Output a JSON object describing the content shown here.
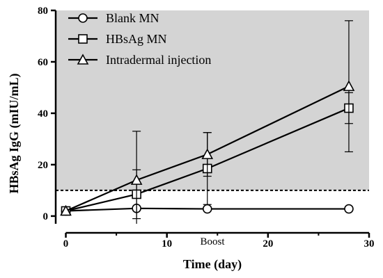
{
  "chart_data": {
    "type": "line",
    "xlabel": "Time (day)",
    "ylabel": "HBsAg IgG (mIU/mL)",
    "xlim": [
      -1,
      30
    ],
    "ylim": [
      -3,
      80
    ],
    "x_ticks": [
      0,
      10,
      20,
      30
    ],
    "y_ticks": [
      0,
      20,
      40,
      60,
      80
    ],
    "x_minor_ticks": [
      5,
      15,
      25
    ],
    "annotation": {
      "text": "Boost",
      "x": 14.5
    },
    "threshold": {
      "y": 10,
      "style": "dashed"
    },
    "shaded_region": {
      "y_from": 10,
      "y_to": 80,
      "color": "#d4d4d4"
    },
    "legend_position": "top-left",
    "grid": false,
    "series": [
      {
        "name": "Blank MN",
        "marker": "circle",
        "x": [
          0,
          7,
          14,
          28
        ],
        "y": [
          2,
          3,
          2.8,
          2.8
        ],
        "err": [
          0,
          0,
          0,
          0
        ]
      },
      {
        "name": "HBsAg MN",
        "marker": "square",
        "x": [
          0,
          7,
          14,
          28
        ],
        "y": [
          2,
          8.5,
          18.5,
          42
        ],
        "err": [
          0,
          9.5,
          14,
          6
        ]
      },
      {
        "name": "Intradermal injection",
        "marker": "triangle",
        "x": [
          0,
          7,
          14,
          28
        ],
        "y": [
          2,
          14,
          24,
          50.5
        ],
        "err": [
          0,
          19,
          8.5,
          25.5
        ]
      }
    ]
  }
}
